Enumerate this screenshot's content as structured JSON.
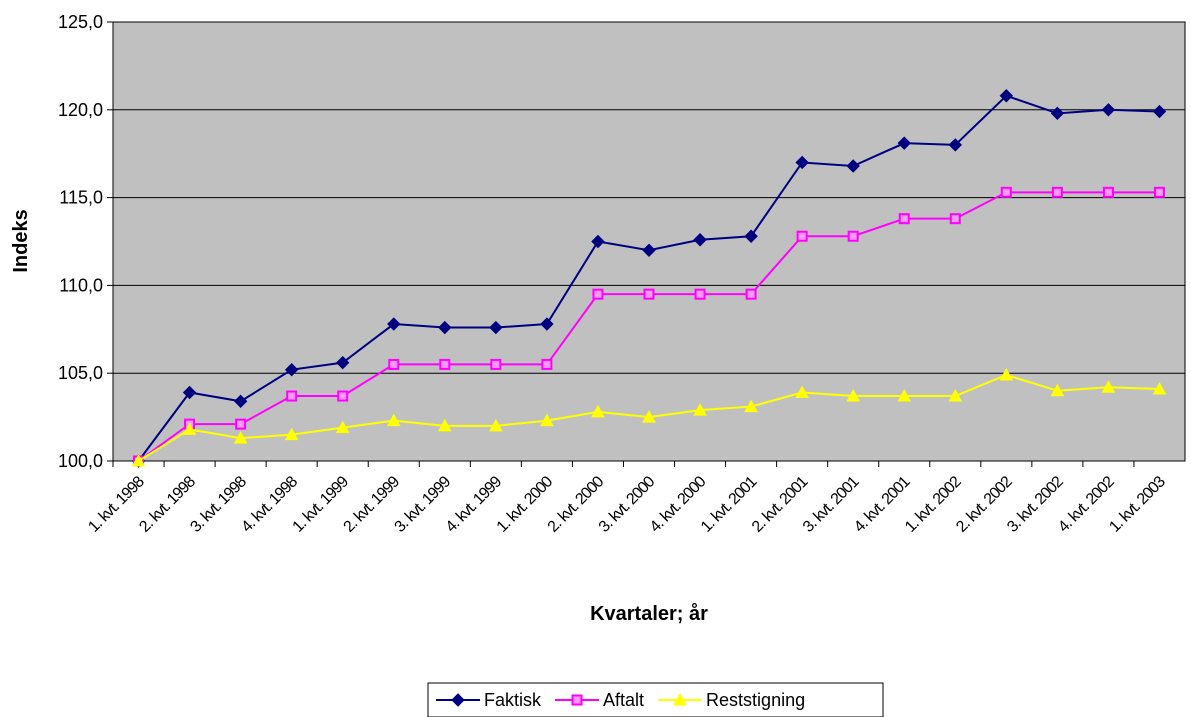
{
  "chart_data": {
    "type": "line",
    "y_label": "Indeks",
    "x_label": "Kvartaler; år",
    "categories": [
      "1. kvt. 1998",
      "2. kvt. 1998",
      "3. kvt. 1998",
      "4. kvt. 1998",
      "1. kvt. 1999",
      "2. kvt. 1999",
      "3. kvt. 1999",
      "4. kvt. 1999",
      "1. kvt. 2000",
      "2. kvt. 2000",
      "3. kvt. 2000",
      "4. kvt. 2000",
      "1. kvt. 2001",
      "2. kvt. 2001",
      "3. kvt. 2001",
      "4. kvt. 2001",
      "1. kvt. 2002",
      "2. kvt. 2002",
      "3. kvt. 2002",
      "4. kvt. 2002",
      "1. kvt. 2003"
    ],
    "series": [
      {
        "name": "Faktisk",
        "color": "#000080",
        "marker": "diamond",
        "values": [
          100,
          103.9,
          103.4,
          105.2,
          105.6,
          107.8,
          107.6,
          107.6,
          107.8,
          112.5,
          112.0,
          112.6,
          112.8,
          117.0,
          116.8,
          118.1,
          118.0,
          120.8,
          119.8,
          120.0,
          119.9
        ]
      },
      {
        "name": "Aftalt",
        "color": "#FF00FF",
        "marker": "square",
        "values": [
          100,
          102.1,
          102.1,
          103.7,
          103.7,
          105.5,
          105.5,
          105.5,
          105.5,
          109.5,
          109.5,
          109.5,
          109.5,
          112.8,
          112.8,
          113.8,
          113.8,
          115.3,
          115.3,
          115.3,
          115.3
        ]
      },
      {
        "name": "Reststigning",
        "color": "#FFFF00",
        "marker": "triangle",
        "values": [
          100,
          101.8,
          101.3,
          101.5,
          101.9,
          102.3,
          102.0,
          102.0,
          102.3,
          102.8,
          102.5,
          102.9,
          103.1,
          103.9,
          103.7,
          103.7,
          103.7,
          104.9,
          104.0,
          104.2,
          104.1
        ]
      }
    ],
    "ylim": [
      100,
      125
    ],
    "yticks": [
      {
        "value": 100,
        "label": "100,0"
      },
      {
        "value": 105,
        "label": "105,0"
      },
      {
        "value": 110,
        "label": "110,0"
      },
      {
        "value": 115,
        "label": "115,0"
      },
      {
        "value": 120,
        "label": "120,0"
      },
      {
        "value": 125,
        "label": "125,0"
      }
    ],
    "grid": true,
    "legend": "bottom"
  }
}
